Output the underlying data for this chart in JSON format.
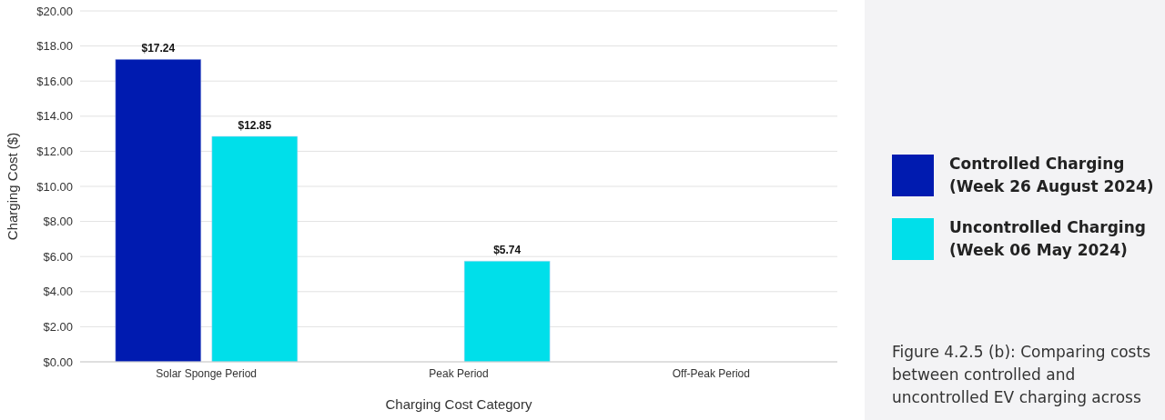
{
  "chart_data": {
    "type": "bar",
    "xlabel": "Charging Cost Category",
    "ylabel": "Charging Cost ($)",
    "categories": [
      "Solar Sponge Period",
      "Peak Period",
      "Off-Peak Period"
    ],
    "series": [
      {
        "name": "Controlled Charging (Week 26 August 2024)",
        "color": "#001bb0",
        "values": [
          17.24,
          null,
          null
        ],
        "value_labels": [
          "$17.24",
          null,
          null
        ]
      },
      {
        "name": "Uncontrolled Charging (Week 06 May 2024)",
        "color": "#00dfea",
        "values": [
          12.85,
          5.74,
          null
        ],
        "value_labels": [
          "$12.85",
          "$5.74",
          null
        ]
      }
    ],
    "ylim": [
      0,
      20
    ],
    "yticks": [
      {
        "value": 0,
        "label": "$0.00"
      },
      {
        "value": 2,
        "label": "$2.00"
      },
      {
        "value": 4,
        "label": "$4.00"
      },
      {
        "value": 6,
        "label": "$6.00"
      },
      {
        "value": 8,
        "label": "$8.00"
      },
      {
        "value": 10,
        "label": "$10.00"
      },
      {
        "value": 12,
        "label": "$12.00"
      },
      {
        "value": 14,
        "label": "$14.00"
      },
      {
        "value": 16,
        "label": "$16.00"
      },
      {
        "value": 18,
        "label": "$18.00"
      },
      {
        "value": 20,
        "label": "$20.00"
      }
    ],
    "grid": "y",
    "legend": "right",
    "annotations": [
      "Figure 4.2.5 (b): Comparing costs between controlled and uncontrolled EV charging across"
    ]
  }
}
